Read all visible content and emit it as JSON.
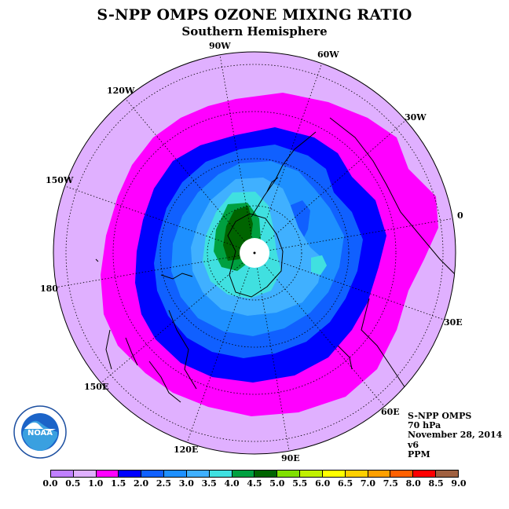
{
  "title": "S-NPP OMPS OZONE MIXING RATIO",
  "subtitle": "Southern Hemisphere",
  "longitude_labels": [
    "90W",
    "60W",
    "30W",
    "0",
    "30E",
    "60E",
    "90E",
    "120E",
    "150E",
    "180",
    "150W",
    "120W"
  ],
  "info": {
    "instrument": "S-NPP OMPS",
    "level": "70 hPa",
    "date": "November 28, 2014",
    "version": "v6",
    "units": "PPM"
  },
  "logo_text": "NOAA",
  "colorbar": {
    "ticks": [
      "0.0",
      "0.5",
      "1.0",
      "1.5",
      "2.0",
      "2.5",
      "3.0",
      "3.5",
      "4.0",
      "4.5",
      "5.0",
      "5.5",
      "6.0",
      "6.5",
      "7.0",
      "7.5",
      "8.0",
      "8.5",
      "9.0"
    ],
    "colors": [
      "#c080ff",
      "#e0b0ff",
      "#ff00ff",
      "#0000ff",
      "#1060ff",
      "#1e90ff",
      "#40b0ff",
      "#40e0e0",
      "#00a040",
      "#006400",
      "#80e000",
      "#c0f000",
      "#ffff00",
      "#ffd000",
      "#ffa000",
      "#ff6000",
      "#ff0000",
      "#a06040"
    ]
  }
}
